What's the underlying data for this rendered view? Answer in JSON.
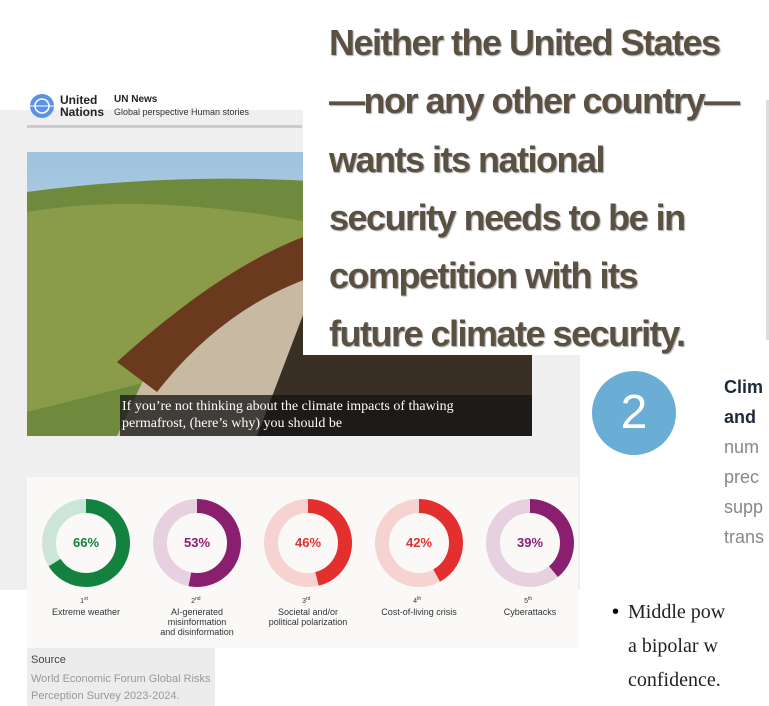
{
  "quote": {
    "lines": [
      "Neither the United States",
      "—nor any other country—",
      "wants its national",
      "security needs to be in",
      "competition with its",
      "future climate security."
    ]
  },
  "un_header": {
    "logo_line1": "United",
    "logo_line2": "Nations",
    "brand": "UN News",
    "tagline": "Global perspective Human stories"
  },
  "photo": {
    "caption_line1": "If you’re not thinking about the climate impacts of thawing",
    "caption_line2": "permafrost, (here’s why) you should be"
  },
  "donuts": [
    {
      "value": 66,
      "value_label": "66%",
      "rank": "1",
      "rank_suffix": "st",
      "label_lines": [
        "Extreme weather"
      ],
      "color": "#13823f",
      "track": "#cde5d9"
    },
    {
      "value": 53,
      "value_label": "53%",
      "rank": "2",
      "rank_suffix": "nd",
      "label_lines": [
        "AI-generated",
        "misinformation",
        "and disinformation"
      ],
      "color": "#8a1f6f",
      "track": "#e7d1e1"
    },
    {
      "value": 46,
      "value_label": "46%",
      "rank": "3",
      "rank_suffix": "rd",
      "label_lines": [
        "Societal and/or",
        "political polarization"
      ],
      "color": "#e3302e",
      "track": "#f6d2d0"
    },
    {
      "value": 42,
      "value_label": "42%",
      "rank": "4",
      "rank_suffix": "th",
      "label_lines": [
        "Cost-of-living crisis"
      ],
      "color": "#e3302e",
      "track": "#f6d2d0"
    },
    {
      "value": 39,
      "value_label": "39%",
      "rank": "5",
      "rank_suffix": "th",
      "label_lines": [
        "Cyberattacks"
      ],
      "color": "#8a1f6f",
      "track": "#e7d1e1"
    }
  ],
  "source": {
    "heading": "Source",
    "line1": "World Economic Forum Global Risks",
    "line2": "Perception Survey 2023-2024."
  },
  "step": {
    "number": "2",
    "bold_lines": [
      "Clim",
      "and"
    ],
    "lines": [
      "num",
      "prec",
      "supp",
      "trans"
    ]
  },
  "bullet": {
    "lines": [
      "Middle pow",
      "a bipolar w",
      "confidence."
    ]
  }
}
